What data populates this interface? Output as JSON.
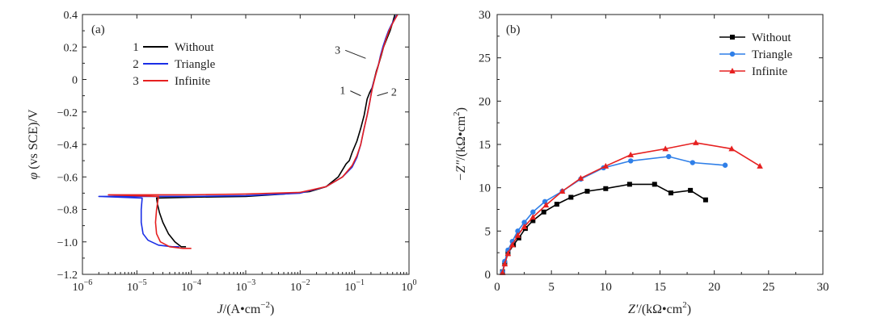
{
  "chart_data": [
    {
      "type": "line",
      "panel_label": "(a)",
      "xlabel_main": "J",
      "xlabel_rest": "/(A•cm",
      "xlabel_exp": "−2",
      "xlabel_close": ")",
      "ylabel_sym": "φ",
      "ylabel_rest": " (vs SCE)/V",
      "x_scale": "log",
      "xlim": [
        1e-06,
        1
      ],
      "ylim": [
        -1.2,
        0.4
      ],
      "x_ticks": [
        {
          "value": 1e-06,
          "base": "10",
          "exp": "−6"
        },
        {
          "value": 1e-05,
          "base": "10",
          "exp": "−5"
        },
        {
          "value": 0.0001,
          "base": "10",
          "exp": "−4"
        },
        {
          "value": 0.001,
          "base": "10",
          "exp": "−3"
        },
        {
          "value": 0.01,
          "base": "10",
          "exp": "−2"
        },
        {
          "value": 0.1,
          "base": "10",
          "exp": "−1"
        },
        {
          "value": 1,
          "base": "10",
          "exp": "0"
        }
      ],
      "y_ticks": [
        {
          "value": 0.4,
          "label": "0.4"
        },
        {
          "value": 0.2,
          "label": "0.2"
        },
        {
          "value": 0,
          "label": "0"
        },
        {
          "value": -0.2,
          "label": "−0.2"
        },
        {
          "value": -0.4,
          "label": "−0.4"
        },
        {
          "value": -0.6,
          "label": "−0.6"
        },
        {
          "value": -0.8,
          "label": "−0.8"
        },
        {
          "value": -1.0,
          "label": "−1.0"
        },
        {
          "value": -1.2,
          "label": "−1.2"
        }
      ],
      "legend_position": "top-left",
      "series": [
        {
          "name": "Without",
          "number": "1",
          "color": "#000000",
          "x": [
            8e-05,
            6.5e-05,
            5e-05,
            3.8e-05,
            3e-05,
            2.6e-05,
            2.4e-05,
            2.3e-05,
            0.0001,
            0.001,
            0.005,
            0.015,
            0.03,
            0.05,
            0.07,
            0.08,
            0.09,
            0.11,
            0.13,
            0.15,
            0.17,
            0.19,
            0.21,
            0.23,
            0.25,
            0.28,
            0.31,
            0.34,
            0.39,
            0.45,
            0.5,
            0.55
          ],
          "y": [
            -1.03,
            -1.03,
            -1.0,
            -0.95,
            -0.88,
            -0.82,
            -0.77,
            -0.73,
            -0.725,
            -0.72,
            -0.705,
            -0.69,
            -0.66,
            -0.6,
            -0.52,
            -0.5,
            -0.45,
            -0.38,
            -0.3,
            -0.22,
            -0.12,
            -0.08,
            -0.05,
            0.0,
            0.05,
            0.1,
            0.15,
            0.2,
            0.25,
            0.3,
            0.35,
            0.4
          ]
        },
        {
          "name": "Triangle",
          "number": "2",
          "color": "#1a2ee6",
          "x": [
            6e-05,
            4.5e-05,
            2.5e-05,
            1.6e-05,
            1.3e-05,
            1.2e-05,
            1.2e-05,
            1.25e-05,
            2e-06,
            0.0001,
            0.001,
            0.01,
            0.03,
            0.06,
            0.09,
            0.11,
            0.13,
            0.15,
            0.17,
            0.19,
            0.21,
            0.24,
            0.27,
            0.3,
            0.33,
            0.37,
            0.42,
            0.48,
            0.54,
            0.6
          ],
          "y": [
            -1.03,
            -1.03,
            -1.02,
            -0.99,
            -0.95,
            -0.88,
            -0.8,
            -0.73,
            -0.72,
            -0.72,
            -0.715,
            -0.7,
            -0.66,
            -0.6,
            -0.54,
            -0.48,
            -0.4,
            -0.3,
            -0.22,
            -0.14,
            -0.05,
            0.02,
            0.08,
            0.15,
            0.2,
            0.25,
            0.3,
            0.34,
            0.37,
            0.4
          ]
        },
        {
          "name": "Infinite",
          "number": "3",
          "color": "#e62020",
          "x": [
            0.0001,
            7e-05,
            4e-05,
            2.7e-05,
            2.3e-05,
            2.2e-05,
            2.3e-05,
            2.5e-05,
            3e-06,
            0.0001,
            0.001,
            0.01,
            0.03,
            0.06,
            0.09,
            0.11,
            0.13,
            0.15,
            0.17,
            0.19,
            0.21,
            0.24,
            0.27,
            0.3,
            0.34,
            0.38,
            0.43,
            0.49,
            0.55,
            0.62
          ],
          "y": [
            -1.04,
            -1.04,
            -1.03,
            -1.0,
            -0.95,
            -0.88,
            -0.8,
            -0.72,
            -0.71,
            -0.71,
            -0.705,
            -0.695,
            -0.66,
            -0.6,
            -0.53,
            -0.47,
            -0.4,
            -0.3,
            -0.22,
            -0.14,
            -0.06,
            0.02,
            0.08,
            0.14,
            0.2,
            0.25,
            0.3,
            0.34,
            0.37,
            0.4
          ]
        }
      ],
      "annotations": [
        {
          "label": "3",
          "x": 0.055,
          "y": 0.16,
          "to_x": 0.16,
          "to_y": 0.13
        },
        {
          "label": "1",
          "x": 0.068,
          "y": -0.09,
          "to_x": 0.13,
          "to_y": -0.1
        },
        {
          "label": "2",
          "x": 0.47,
          "y": -0.1,
          "to_x": 0.26,
          "to_y": -0.1
        }
      ]
    },
    {
      "type": "scatter",
      "panel_label": "(b)",
      "xlabel_main": "Z′",
      "xlabel_rest": "/(kΩ•cm",
      "xlabel_exp": "2",
      "xlabel_close": ")",
      "ylabel_main": "−Z″",
      "ylabel_rest": "/(kΩ•cm",
      "ylabel_exp": "2",
      "ylabel_close": ")",
      "xlim": [
        0,
        30
      ],
      "ylim": [
        0,
        30
      ],
      "x_ticks": [
        0,
        5,
        10,
        15,
        20,
        25,
        30
      ],
      "y_ticks": [
        0,
        5,
        10,
        15,
        20,
        25,
        30
      ],
      "legend_position": "top-right",
      "series": [
        {
          "name": "Without",
          "marker": "square",
          "color": "#000000",
          "x": [
            0.5,
            0.7,
            1.0,
            1.5,
            2.0,
            2.6,
            3.3,
            4.3,
            5.5,
            6.8,
            8.3,
            10.0,
            12.2,
            14.5,
            16.0,
            17.8,
            19.2
          ],
          "y": [
            0.3,
            1.3,
            2.4,
            3.4,
            4.2,
            5.3,
            6.2,
            7.2,
            8.1,
            8.9,
            9.6,
            9.9,
            10.4,
            10.4,
            9.4,
            9.7,
            8.6
          ]
        },
        {
          "name": "Triangle",
          "marker": "circle",
          "color": "#2f7fe8",
          "x": [
            0.5,
            0.7,
            1.0,
            1.4,
            1.9,
            2.5,
            3.3,
            4.4,
            6.0,
            7.7,
            9.8,
            12.3,
            15.8,
            18.0,
            21.0
          ],
          "y": [
            0.3,
            1.5,
            2.8,
            3.8,
            5.0,
            6.0,
            7.2,
            8.4,
            9.6,
            11.0,
            12.3,
            13.1,
            13.6,
            12.9,
            12.6
          ]
        },
        {
          "name": "Infinite",
          "marker": "triangle",
          "color": "#e62020",
          "x": [
            0.5,
            0.7,
            1.0,
            1.4,
            1.9,
            2.5,
            3.3,
            4.5,
            6.0,
            7.7,
            10.0,
            12.3,
            15.5,
            18.3,
            21.6,
            24.2
          ],
          "y": [
            0.2,
            1.2,
            2.4,
            3.4,
            4.5,
            5.5,
            6.6,
            8.0,
            9.6,
            11.1,
            12.5,
            13.8,
            14.5,
            15.2,
            14.5,
            12.5
          ]
        }
      ]
    }
  ]
}
